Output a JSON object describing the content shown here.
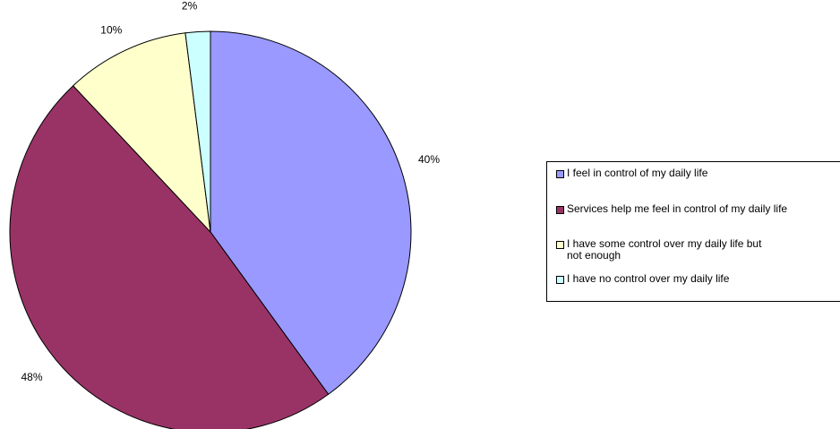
{
  "chart_data": {
    "type": "pie",
    "categories": [
      "I feel in control of my daily life",
      "Services help me feel in control of my daily life",
      "I have some control over my daily life but not enough",
      "I have no control over my daily life"
    ],
    "values": [
      40,
      48,
      10,
      2
    ],
    "labels": [
      "40%",
      "48%",
      "10%",
      "2%"
    ],
    "colors": [
      "#9999ff",
      "#993366",
      "#ffffcc",
      "#ccffff"
    ],
    "title": "",
    "legend_position": "right"
  }
}
